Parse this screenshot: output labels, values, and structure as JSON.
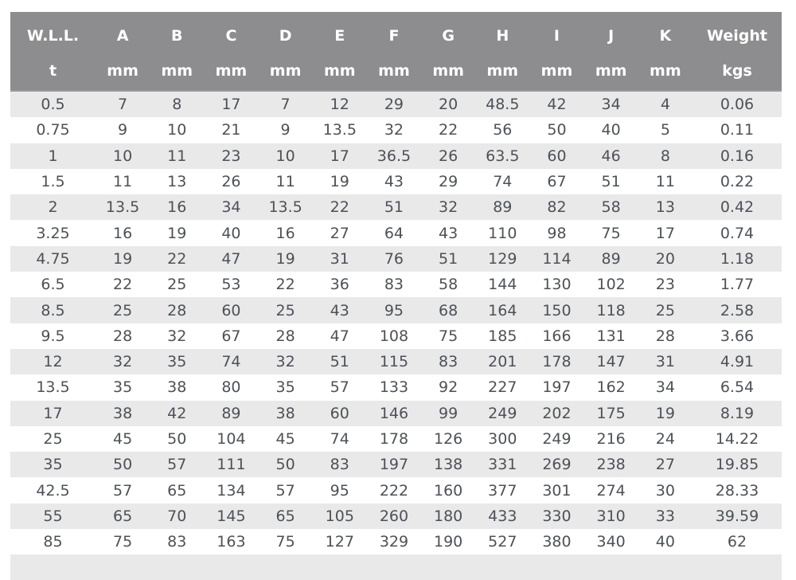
{
  "chart_data": {
    "type": "table",
    "title": "",
    "columns": [
      "W.L.L.",
      "A",
      "B",
      "C",
      "D",
      "E",
      "F",
      "G",
      "H",
      "I",
      "J",
      "K",
      "Weight"
    ],
    "units": [
      "t",
      "mm",
      "mm",
      "mm",
      "mm",
      "mm",
      "mm",
      "mm",
      "mm",
      "mm",
      "mm",
      "mm",
      "kgs"
    ],
    "rows": [
      [
        "0.5",
        "7",
        "8",
        "17",
        "7",
        "12",
        "29",
        "20",
        "48.5",
        "42",
        "34",
        "4",
        "0.06"
      ],
      [
        "0.75",
        "9",
        "10",
        "21",
        "9",
        "13.5",
        "32",
        "22",
        "56",
        "50",
        "40",
        "5",
        "0.11"
      ],
      [
        "1",
        "10",
        "11",
        "23",
        "10",
        "17",
        "36.5",
        "26",
        "63.5",
        "60",
        "46",
        "8",
        "0.16"
      ],
      [
        "1.5",
        "11",
        "13",
        "26",
        "11",
        "19",
        "43",
        "29",
        "74",
        "67",
        "51",
        "11",
        "0.22"
      ],
      [
        "2",
        "13.5",
        "16",
        "34",
        "13.5",
        "22",
        "51",
        "32",
        "89",
        "82",
        "58",
        "13",
        "0.42"
      ],
      [
        "3.25",
        "16",
        "19",
        "40",
        "16",
        "27",
        "64",
        "43",
        "110",
        "98",
        "75",
        "17",
        "0.74"
      ],
      [
        "4.75",
        "19",
        "22",
        "47",
        "19",
        "31",
        "76",
        "51",
        "129",
        "114",
        "89",
        "20",
        "1.18"
      ],
      [
        "6.5",
        "22",
        "25",
        "53",
        "22",
        "36",
        "83",
        "58",
        "144",
        "130",
        "102",
        "23",
        "1.77"
      ],
      [
        "8.5",
        "25",
        "28",
        "60",
        "25",
        "43",
        "95",
        "68",
        "164",
        "150",
        "118",
        "25",
        "2.58"
      ],
      [
        "9.5",
        "28",
        "32",
        "67",
        "28",
        "47",
        "108",
        "75",
        "185",
        "166",
        "131",
        "28",
        "3.66"
      ],
      [
        "12",
        "32",
        "35",
        "74",
        "32",
        "51",
        "115",
        "83",
        "201",
        "178",
        "147",
        "31",
        "4.91"
      ],
      [
        "13.5",
        "35",
        "38",
        "80",
        "35",
        "57",
        "133",
        "92",
        "227",
        "197",
        "162",
        "34",
        "6.54"
      ],
      [
        "17",
        "38",
        "42",
        "89",
        "38",
        "60",
        "146",
        "99",
        "249",
        "202",
        "175",
        "19",
        "8.19"
      ],
      [
        "25",
        "45",
        "50",
        "104",
        "45",
        "74",
        "178",
        "126",
        "300",
        "249",
        "216",
        "24",
        "14.22"
      ],
      [
        "35",
        "50",
        "57",
        "111",
        "50",
        "83",
        "197",
        "138",
        "331",
        "269",
        "238",
        "27",
        "19.85"
      ],
      [
        "42.5",
        "57",
        "65",
        "134",
        "57",
        "95",
        "222",
        "160",
        "377",
        "301",
        "274",
        "30",
        "28.33"
      ],
      [
        "55",
        "65",
        "70",
        "145",
        "65",
        "105",
        "260",
        "180",
        "433",
        "330",
        "310",
        "33",
        "39.59"
      ],
      [
        "85",
        "75",
        "83",
        "163",
        "75",
        "127",
        "329",
        "190",
        "527",
        "380",
        "340",
        "40",
        "62"
      ]
    ],
    "layout": {
      "striped": true,
      "stripe_pattern": "odd-rows-gray",
      "header_rows": 2,
      "partial_row_visible_at_bottom": true
    }
  },
  "colors": {
    "header_bg": "#8d8d8f",
    "header_text": "#ffffff",
    "stripe_bg": "#e9e9e9",
    "row_bg": "#ffffff",
    "cell_text": "#4d5157"
  }
}
